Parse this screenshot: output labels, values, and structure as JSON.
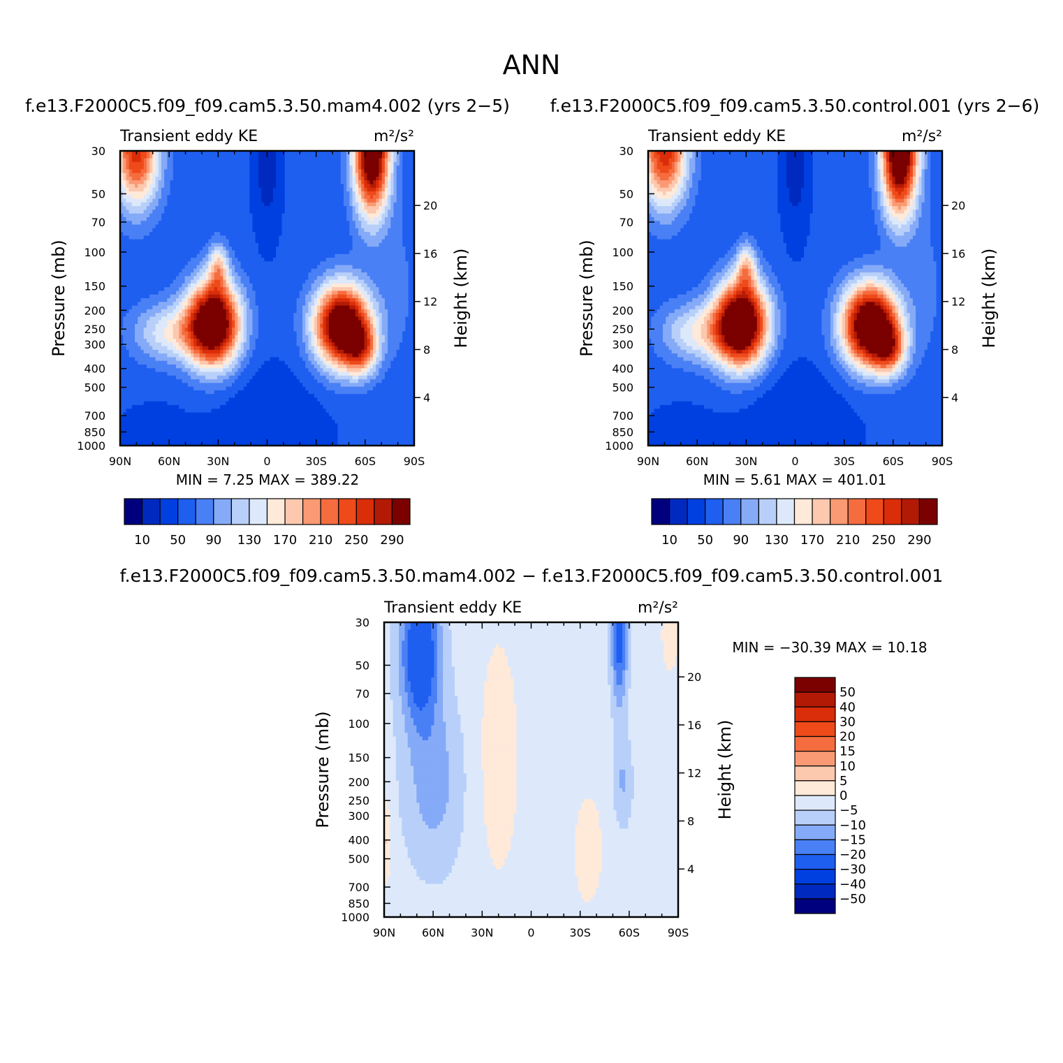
{
  "page": {
    "title": "ANN",
    "label_left": "f.e13.F2000C5.f09_f09.cam5.3.50.mam4.002 (yrs 2−5)",
    "label_right": "f.e13.F2000C5.f09_f09.cam5.3.50.control.001 (yrs 2−6)",
    "label_diff": "f.e13.F2000C5.f09_f09.cam5.3.50.mam4.002 − f.e13.F2000C5.f09_f09.cam5.3.50.control.001"
  },
  "panels": {
    "left": {
      "title_left": "Transient eddy KE",
      "title_right": "m²/s²",
      "ylabel": "Pressure (mb)",
      "y2label": "Height (km)",
      "minmax": "MIN =    7.25   MAX = 389.22"
    },
    "right": {
      "title_left": "Transient eddy KE",
      "title_right": "m²/s²",
      "ylabel": "Pressure (mb)",
      "y2label": "Height (km)",
      "minmax": "MIN =    5.61   MAX = 401.01"
    },
    "diff": {
      "title_left": "Transient eddy KE",
      "title_right": "m²/s²",
      "ylabel": "Pressure (mb)",
      "y2label": "Height (km)",
      "minmax": "MIN = −30.39   MAX =   10.18"
    }
  },
  "chart_data": [
    {
      "type": "heatmap",
      "name_ref": "mam4",
      "x_ticks": [
        "90N",
        "60N",
        "30N",
        "0",
        "30S",
        "60S",
        "90S"
      ],
      "x_values": [
        90,
        60,
        30,
        0,
        -30,
        -60,
        -90
      ],
      "y_ticks": [
        "30",
        "50",
        "70",
        "100",
        "150",
        "200",
        "250",
        "300",
        "400",
        "500",
        "700",
        "850",
        "1000"
      ],
      "y_scale": "log",
      "ylim": [
        1000,
        30
      ],
      "y2_ticks": [
        "20",
        "16",
        "12",
        "8",
        "4"
      ],
      "y2_values": [
        20,
        16,
        12,
        8,
        4
      ],
      "colorbar_ticks": [
        "10",
        "50",
        "90",
        "130",
        "170",
        "210",
        "250",
        "290"
      ],
      "min": 7.25,
      "max": 389.22,
      "features": [
        {
          "lat": 31,
          "p": 200,
          "value": 389,
          "desc": "NH jet maximum"
        },
        {
          "lat": -52,
          "p": 280,
          "value": 380,
          "desc": "SH jet maximum"
        },
        {
          "lat": -64,
          "p": 30,
          "value": 320,
          "desc": "SH stratospheric maximum"
        },
        {
          "lat": 77,
          "p": 30,
          "value": 230,
          "desc": "NH stratospheric maximum"
        }
      ]
    },
    {
      "type": "heatmap",
      "name_ref": "control",
      "x_ticks": [
        "90N",
        "60N",
        "30N",
        "0",
        "30S",
        "60S",
        "90S"
      ],
      "x_values": [
        90,
        60,
        30,
        0,
        -30,
        -60,
        -90
      ],
      "y_ticks": [
        "30",
        "50",
        "70",
        "100",
        "150",
        "200",
        "250",
        "300",
        "400",
        "500",
        "700",
        "850",
        "1000"
      ],
      "y_scale": "log",
      "ylim": [
        1000,
        30
      ],
      "y2_ticks": [
        "20",
        "16",
        "12",
        "8",
        "4"
      ],
      "y2_values": [
        20,
        16,
        12,
        8,
        4
      ],
      "colorbar_ticks": [
        "10",
        "50",
        "90",
        "130",
        "170",
        "210",
        "250",
        "290"
      ],
      "min": 5.61,
      "max": 401.01,
      "features": [
        {
          "lat": 31,
          "p": 200,
          "value": 395,
          "desc": "NH jet maximum"
        },
        {
          "lat": -52,
          "p": 280,
          "value": 401,
          "desc": "SH jet maximum"
        },
        {
          "lat": -64,
          "p": 30,
          "value": 330,
          "desc": "SH stratospheric maximum"
        },
        {
          "lat": 77,
          "p": 30,
          "value": 240,
          "desc": "NH stratospheric maximum"
        }
      ]
    },
    {
      "type": "heatmap",
      "name_ref": "difference",
      "x_ticks": [
        "90N",
        "60N",
        "30N",
        "0",
        "30S",
        "60S",
        "90S"
      ],
      "x_values": [
        90,
        60,
        30,
        0,
        -30,
        -60,
        -90
      ],
      "y_ticks": [
        "30",
        "50",
        "70",
        "100",
        "150",
        "200",
        "250",
        "300",
        "400",
        "500",
        "700",
        "850",
        "1000"
      ],
      "y_scale": "log",
      "ylim": [
        1000,
        30
      ],
      "y2_ticks": [
        "20",
        "16",
        "12",
        "8",
        "4"
      ],
      "y2_values": [
        20,
        16,
        12,
        8,
        4
      ],
      "colorbar_ticks": [
        "50",
        "40",
        "30",
        "20",
        "15",
        "10",
        "5",
        "0",
        "−5",
        "−10",
        "−15",
        "−20",
        "−30",
        "−40",
        "−50"
      ],
      "min": -30.39,
      "max": 10.18,
      "features": [
        {
          "lat": 68,
          "p": 40,
          "value": -30,
          "desc": "NH stratospheric negative"
        },
        {
          "lat": -54,
          "p": 40,
          "value": -25,
          "desc": "SH stratospheric negative"
        },
        {
          "lat": 45,
          "p": 300,
          "value": -10,
          "desc": "NH midlatitude negative"
        },
        {
          "lat": 88,
          "p": 400,
          "value": 8,
          "desc": "polar positive"
        },
        {
          "lat": 10,
          "p": 100,
          "value": 3,
          "desc": "tropical positive"
        }
      ]
    }
  ],
  "colors": {
    "main_scale": [
      "#00007f",
      "#002abf",
      "#0040e0",
      "#1e5ff0",
      "#4a80f5",
      "#85aaf7",
      "#b8d0f9",
      "#dde9fb",
      "#ffe9d9",
      "#fcc8ae",
      "#fa9a74",
      "#f56c3f",
      "#ee4a1a",
      "#da2d0a",
      "#b31a05",
      "#7b0000"
    ],
    "diff_scale": [
      "#00007f",
      "#002abf",
      "#0040e0",
      "#1e5ff0",
      "#4a80f5",
      "#85aaf7",
      "#b8d0f9",
      "#dde9fb",
      "#ffe9d9",
      "#fcc8ae",
      "#fa9a74",
      "#f56c3f",
      "#ee4a1a",
      "#da2d0a",
      "#b31a05",
      "#7b0000"
    ]
  }
}
